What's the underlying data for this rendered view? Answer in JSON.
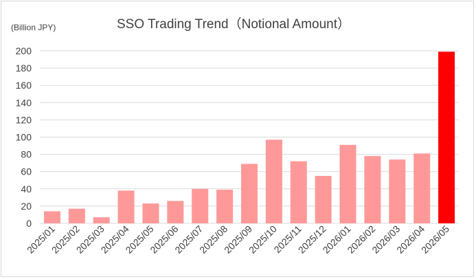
{
  "chart_data": {
    "type": "bar",
    "title": "SSO Trading Trend（Notional Amount）",
    "unit_label": "(Billion JPY)",
    "xlabel": "",
    "ylabel": "",
    "ylim": [
      0,
      200
    ],
    "yticks": [
      0,
      20,
      40,
      60,
      80,
      100,
      120,
      140,
      160,
      180,
      200
    ],
    "grid": true,
    "legend": "none",
    "categories": [
      "2025/01",
      "2025/02",
      "2025/03",
      "2025/04",
      "2025/05",
      "2025/06",
      "2025/07",
      "2025/08",
      "2025/09",
      "2025/10",
      "2025/11",
      "2025/12",
      "2026/01",
      "2026/02",
      "2026/03",
      "2026/04",
      "2026/05"
    ],
    "values": [
      14,
      17,
      7,
      38,
      23,
      26,
      40,
      39,
      69,
      97,
      72,
      55,
      91,
      78,
      74,
      81,
      199
    ],
    "colors": {
      "bar": "#ff9999",
      "highlight_bar": "#ff0000",
      "gridline": "#d9d9d9",
      "text": "#404040"
    },
    "highlight_index": 16
  }
}
